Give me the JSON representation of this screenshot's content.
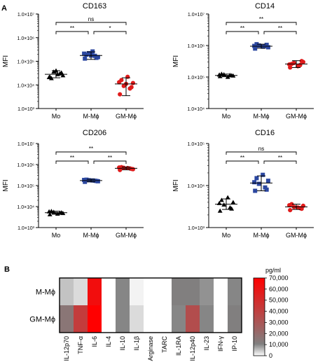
{
  "panel_labels": {
    "a": "A",
    "b": "B"
  },
  "chart_data": [
    {
      "type": "scatter",
      "title": "CD163",
      "ylabel": "MFI",
      "scale": "log",
      "ylim": [
        1000,
        10000000
      ],
      "ytick_labels": [
        "1.0×10³",
        "1.0×10⁴",
        "1.0×10⁵",
        "1.0×10⁶",
        "1.0×10⁷"
      ],
      "categories": [
        "Mo",
        "M-Mϕ",
        "GM-Mϕ"
      ],
      "series": [
        {
          "values": [
            22000,
            30000,
            36000,
            25000,
            19000,
            28000,
            33000,
            21000,
            40000
          ],
          "mean": 28000,
          "sd_range": [
            20000,
            40000
          ]
        },
        {
          "values": [
            130000,
            170000,
            220000,
            150000,
            190000,
            260000,
            140000,
            210000,
            175000
          ],
          "mean": 175000,
          "sd_range": [
            120000,
            250000
          ]
        },
        {
          "values": [
            4000,
            7000,
            9000,
            12000,
            16000,
            22000,
            8000,
            13000,
            11000
          ],
          "mean": 11000,
          "sd_range": [
            3500,
            20000
          ]
        }
      ],
      "significance": [
        {
          "pair": [
            0,
            2
          ],
          "label": "ns"
        },
        {
          "pair": [
            0,
            1
          ],
          "label": "**"
        },
        {
          "pair": [
            1,
            2
          ],
          "label": "*"
        }
      ]
    },
    {
      "type": "scatter",
      "title": "CD14",
      "ylabel": "MFI",
      "scale": "log",
      "ylim": [
        10000,
        10000000
      ],
      "ytick_labels": [
        "1.0×10⁴",
        "1.0×10⁵",
        "1.0×10⁶",
        "1.0×10⁷"
      ],
      "categories": [
        "Mo",
        "M-Mϕ",
        "GM-Mϕ"
      ],
      "series": [
        {
          "values": [
            105000,
            115000,
            120000,
            110000,
            125000,
            100000,
            112000,
            118000
          ],
          "mean": 112000,
          "sd_range": [
            102000,
            124000
          ]
        },
        {
          "values": [
            800000,
            950000,
            1000000,
            880000,
            1100000,
            920000,
            1050000,
            970000
          ],
          "mean": 950000,
          "sd_range": [
            820000,
            1100000
          ]
        },
        {
          "values": [
            200000,
            240000,
            280000,
            300000,
            260000,
            220000,
            320000,
            250000
          ],
          "mean": 260000,
          "sd_range": [
            200000,
            330000
          ]
        }
      ],
      "significance": [
        {
          "pair": [
            0,
            2
          ],
          "label": "**"
        },
        {
          "pair": [
            0,
            1
          ],
          "label": "**"
        },
        {
          "pair": [
            1,
            2
          ],
          "label": "**"
        }
      ]
    },
    {
      "type": "scatter",
      "title": "CD206",
      "ylabel": "MFI",
      "scale": "log",
      "ylim": [
        1000,
        10000000
      ],
      "ytick_labels": [
        "1.0×10³",
        "1.0×10⁴",
        "1.0×10⁵",
        "1.0×10⁶",
        "1.0×10⁷"
      ],
      "categories": [
        "Mo",
        "M-Mϕ",
        "GM-Mϕ"
      ],
      "series": [
        {
          "values": [
            4200,
            5000,
            5500,
            4800,
            6000,
            4500,
            5200,
            5800
          ],
          "mean": 5100,
          "sd_range": [
            4300,
            6000
          ]
        },
        {
          "values": [
            150000,
            170000,
            180000,
            160000,
            190000,
            175000,
            165000,
            185000
          ],
          "mean": 172000,
          "sd_range": [
            150000,
            200000
          ]
        },
        {
          "values": [
            550000,
            650000,
            700000,
            600000,
            750000,
            680000,
            620000,
            720000
          ],
          "mean": 660000,
          "sd_range": [
            560000,
            760000
          ]
        }
      ],
      "significance": [
        {
          "pair": [
            0,
            2
          ],
          "label": "**"
        },
        {
          "pair": [
            0,
            1
          ],
          "label": "**"
        },
        {
          "pair": [
            1,
            2
          ],
          "label": "**"
        }
      ]
    },
    {
      "type": "scatter",
      "title": "CD16",
      "ylabel": "MFI",
      "scale": "log",
      "ylim": [
        1000,
        100000
      ],
      "ytick_labels": [
        "1.0×10³",
        "1.0×10⁴",
        "1.0×10⁵"
      ],
      "categories": [
        "Mo",
        "M-Mϕ",
        "GM-Mϕ"
      ],
      "series": [
        {
          "values": [
            2500,
            3000,
            3500,
            4000,
            4500,
            5200,
            2800,
            3800
          ],
          "mean": 3600,
          "sd_range": [
            2700,
            4800
          ]
        },
        {
          "values": [
            7500,
            9000,
            11000,
            13000,
            15000,
            18000,
            8000,
            12000
          ],
          "mean": 11500,
          "sd_range": [
            7500,
            17000
          ]
        },
        {
          "values": [
            2600,
            2900,
            3100,
            3300,
            3600,
            3000,
            2800,
            3400
          ],
          "mean": 3100,
          "sd_range": [
            2700,
            3600
          ]
        }
      ],
      "significance": [
        {
          "pair": [
            0,
            2
          ],
          "label": "ns"
        },
        {
          "pair": [
            0,
            1
          ],
          "label": "**"
        },
        {
          "pair": [
            1,
            2
          ],
          "label": "**"
        }
      ]
    },
    {
      "type": "heatmap",
      "rows": [
        "M-Mϕ",
        "GM-Mϕ"
      ],
      "columns": [
        "IL-12p70",
        "TNF-α",
        "IL-6",
        "IL-4",
        "IL-10",
        "IL-1β",
        "Arginase",
        "TARC",
        "IL-1RA",
        "IL-12p40",
        "IL-23",
        "IFN-γ",
        "IP-10"
      ],
      "values": [
        [
          5000,
          3000,
          64000,
          0,
          10000,
          1000,
          0,
          0,
          11000,
          11000,
          9000,
          0,
          10000
        ],
        [
          15000,
          42000,
          70000,
          0,
          10000,
          3000,
          0,
          0,
          10000,
          34000,
          10000,
          0,
          11000
        ]
      ],
      "colorbar": {
        "label": "pg/ml",
        "min": 0,
        "max": 70000,
        "ticks": [
          "0",
          "10,000",
          "20,000",
          "30,000",
          "40,000",
          "50,000",
          "60,000",
          "70,000"
        ],
        "low_color": "#ffffff",
        "mid_color": "#808080",
        "high_color": "#ff0000"
      }
    }
  ],
  "colors": {
    "Mo": "#000000",
    "M-Mϕ": "#2b47a0",
    "GM-Mϕ": "#e01b1b"
  }
}
